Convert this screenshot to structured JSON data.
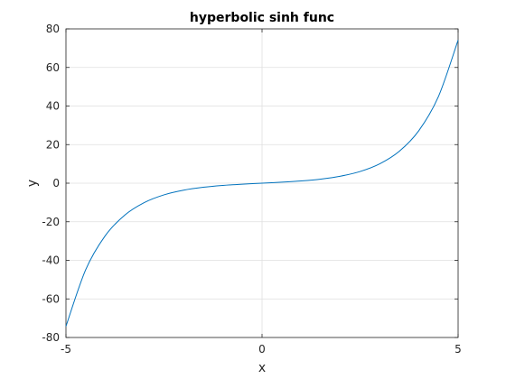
{
  "chart_data": {
    "type": "line",
    "title": "hyperbolic sinh func",
    "xlabel": "x",
    "ylabel": "y",
    "xlim": [
      -5,
      5
    ],
    "ylim": [
      -80,
      80
    ],
    "xticks": [
      -5,
      0,
      5
    ],
    "yticks": [
      -80,
      -60,
      -40,
      -20,
      0,
      20,
      40,
      60,
      80
    ],
    "grid": true,
    "series": [
      {
        "color": "#0072bd",
        "x": [
          -5,
          -4.5,
          -4,
          -3.5,
          -3,
          -2.5,
          -2,
          -1.5,
          -1,
          -0.5,
          0,
          0.5,
          1,
          1.5,
          2,
          2.5,
          3,
          3.5,
          4,
          4.5,
          5
        ],
        "y": [
          -74.2,
          -45.0,
          -27.29,
          -16.54,
          -10.02,
          -6.05,
          -3.63,
          -2.13,
          -1.18,
          -0.52,
          0,
          0.52,
          1.18,
          2.13,
          3.63,
          6.05,
          10.02,
          16.54,
          27.29,
          45.0,
          74.2
        ]
      }
    ]
  }
}
